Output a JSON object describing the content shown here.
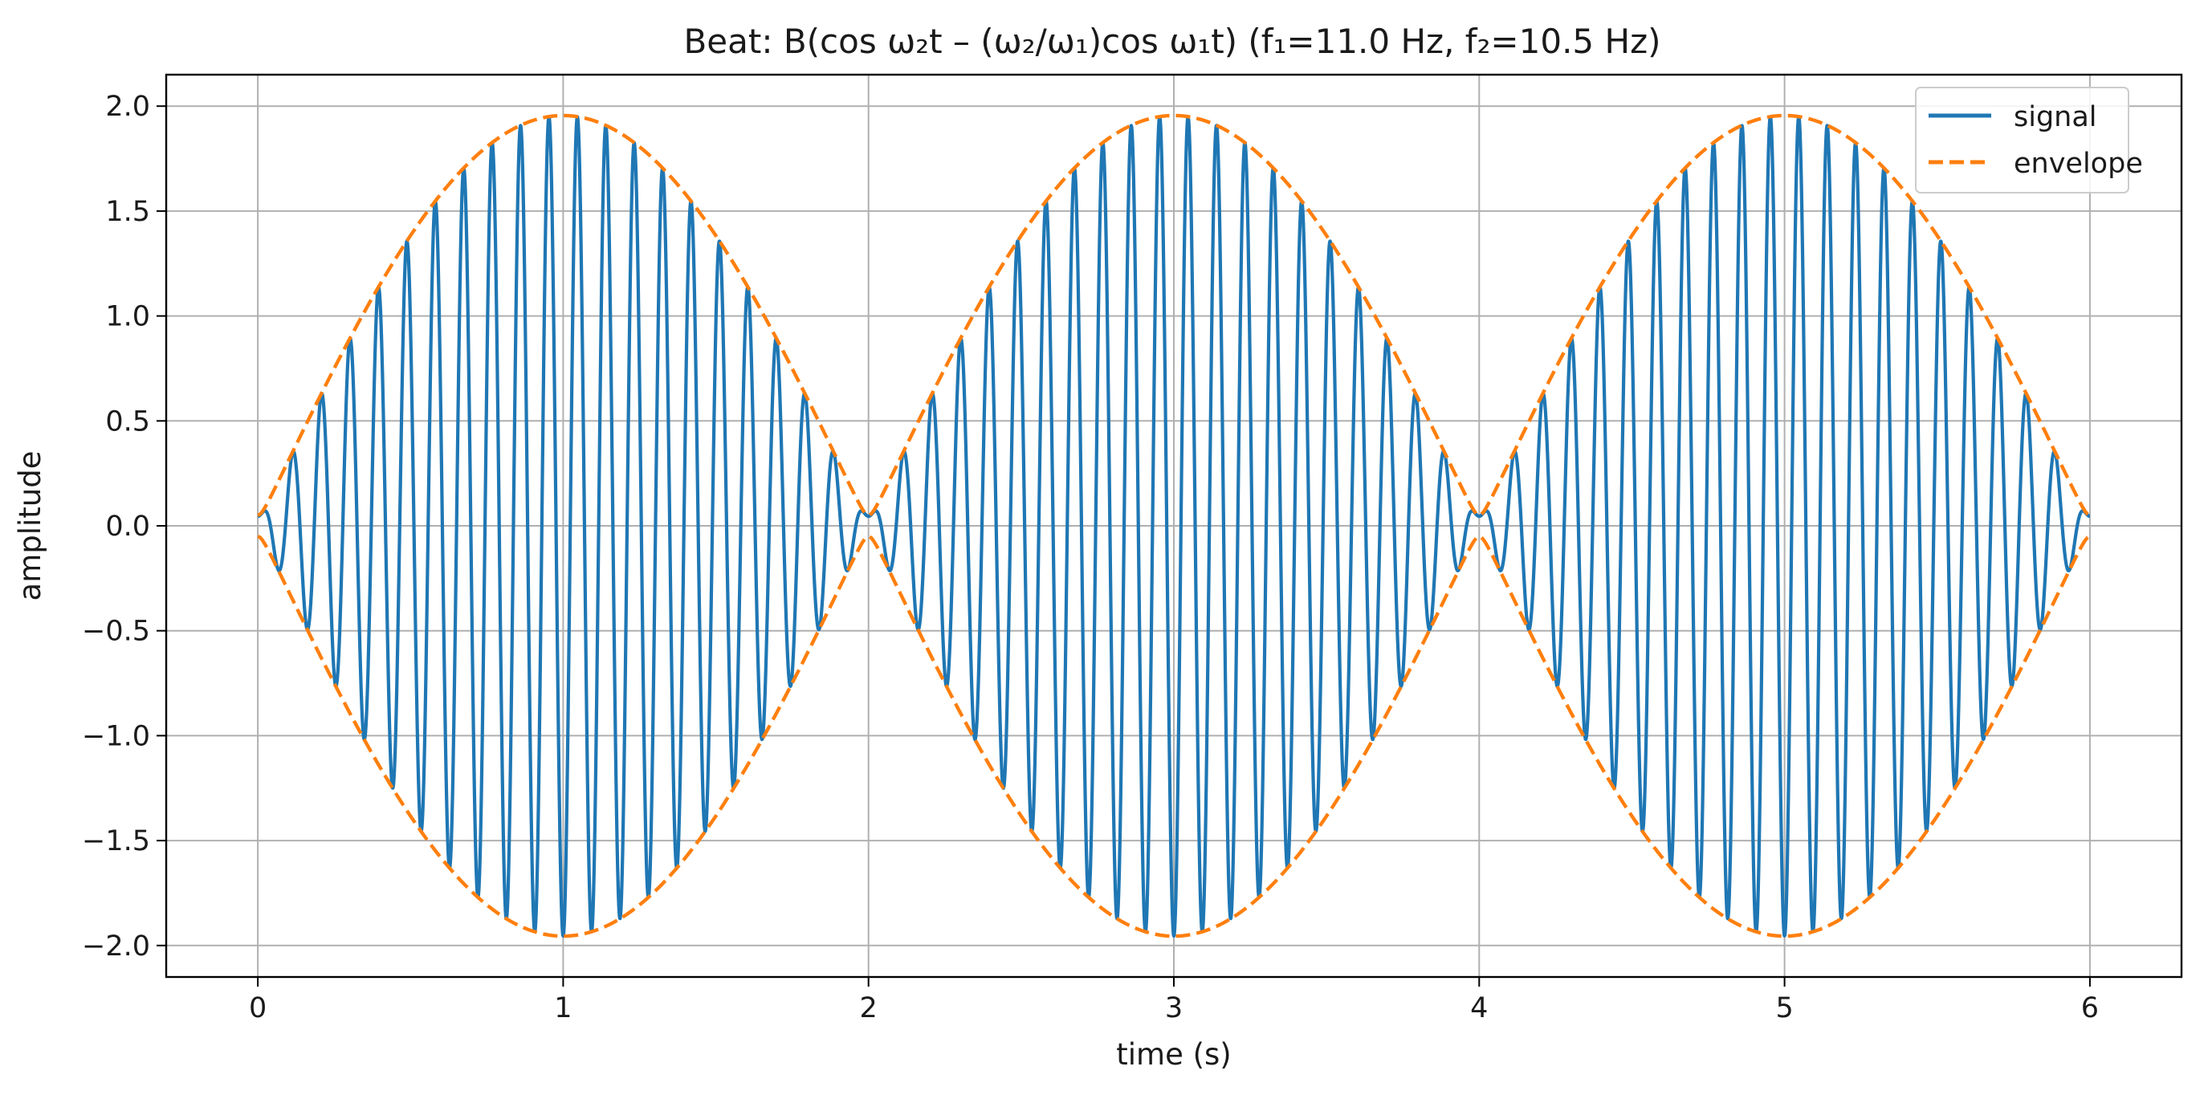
{
  "chart_data": {
    "type": "line",
    "title": "Beat: B(cos ω₂t – (ω₂/ω₁)cos ω₁t)   (f₁=11.0 Hz, f₂=10.5 Hz)",
    "xlabel": "time (s)",
    "ylabel": "amplitude",
    "xlim": [
      -0.3,
      6.3
    ],
    "ylim": [
      -2.15,
      2.15
    ],
    "x_ticks": [
      0,
      1,
      2,
      3,
      4,
      5,
      6
    ],
    "y_ticks": [
      -2.0,
      -1.5,
      -1.0,
      -0.5,
      0.0,
      0.5,
      1.0,
      1.5,
      2.0
    ],
    "grid": true,
    "legend_position": "top-right",
    "x_range": [
      0,
      6
    ],
    "B": 1.0,
    "f1_hz": 11.0,
    "f2_hz": 10.5,
    "series": [
      {
        "name": "signal",
        "style": "solid",
        "color": "#1f77b4",
        "formula": "B*(cos(2*pi*f2*t) - (f2/f1)*cos(2*pi*f1*t))"
      },
      {
        "name": "envelope",
        "style": "dashed",
        "color": "#ff7f0e",
        "formula": "±B*(1+f2/f1)*|sin(pi*(f1-f2)*t)| approx., peak 1.95"
      }
    ],
    "envelope_peaks": [
      {
        "t": 1,
        "value": 1.95
      },
      {
        "t": 3,
        "value": 1.95
      },
      {
        "t": 5,
        "value": 1.95
      }
    ],
    "envelope_nodes": [
      0,
      2,
      4,
      6
    ]
  }
}
